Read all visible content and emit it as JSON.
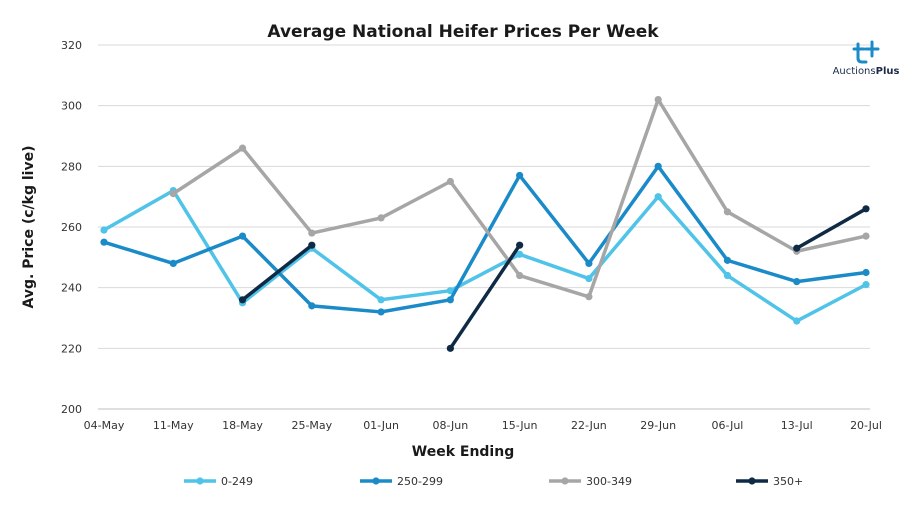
{
  "chart_data": {
    "type": "line",
    "title": "Average National Heifer Prices Per Week",
    "xlabel": "Week Ending",
    "ylabel": "Avg. Price (c/kg live)",
    "categories": [
      "04-May",
      "11-May",
      "18-May",
      "25-May",
      "01-Jun",
      "08-Jun",
      "15-Jun",
      "22-Jun",
      "29-Jun",
      "06-Jul",
      "13-Jul",
      "20-Jul"
    ],
    "ylim": [
      200,
      320
    ],
    "yticks": [
      200,
      220,
      240,
      260,
      280,
      300,
      320
    ],
    "grid": "horizontal",
    "legend_position": "bottom",
    "series": [
      {
        "name": "0-249",
        "color": "#4fc3e8",
        "values": [
          259,
          272,
          235,
          253,
          236,
          239,
          251,
          243,
          270,
          244,
          229,
          241
        ]
      },
      {
        "name": "250-299",
        "color": "#1a8ac8",
        "values": [
          255,
          248,
          257,
          234,
          232,
          236,
          277,
          248,
          280,
          249,
          242,
          245
        ]
      },
      {
        "name": "300-349",
        "color": "#a6a6a6",
        "values": [
          null,
          271,
          286,
          258,
          263,
          275,
          244,
          237,
          302,
          265,
          252,
          257
        ]
      },
      {
        "name": "350+",
        "color": "#0f2a45",
        "values": [
          null,
          null,
          236,
          254,
          null,
          220,
          254,
          null,
          null,
          null,
          253,
          266
        ]
      }
    ]
  },
  "logo": {
    "name": "auctionsplus-logo-icon",
    "text_regular": "Auctions",
    "text_bold": "Plus",
    "color": "#1a8ac8"
  }
}
